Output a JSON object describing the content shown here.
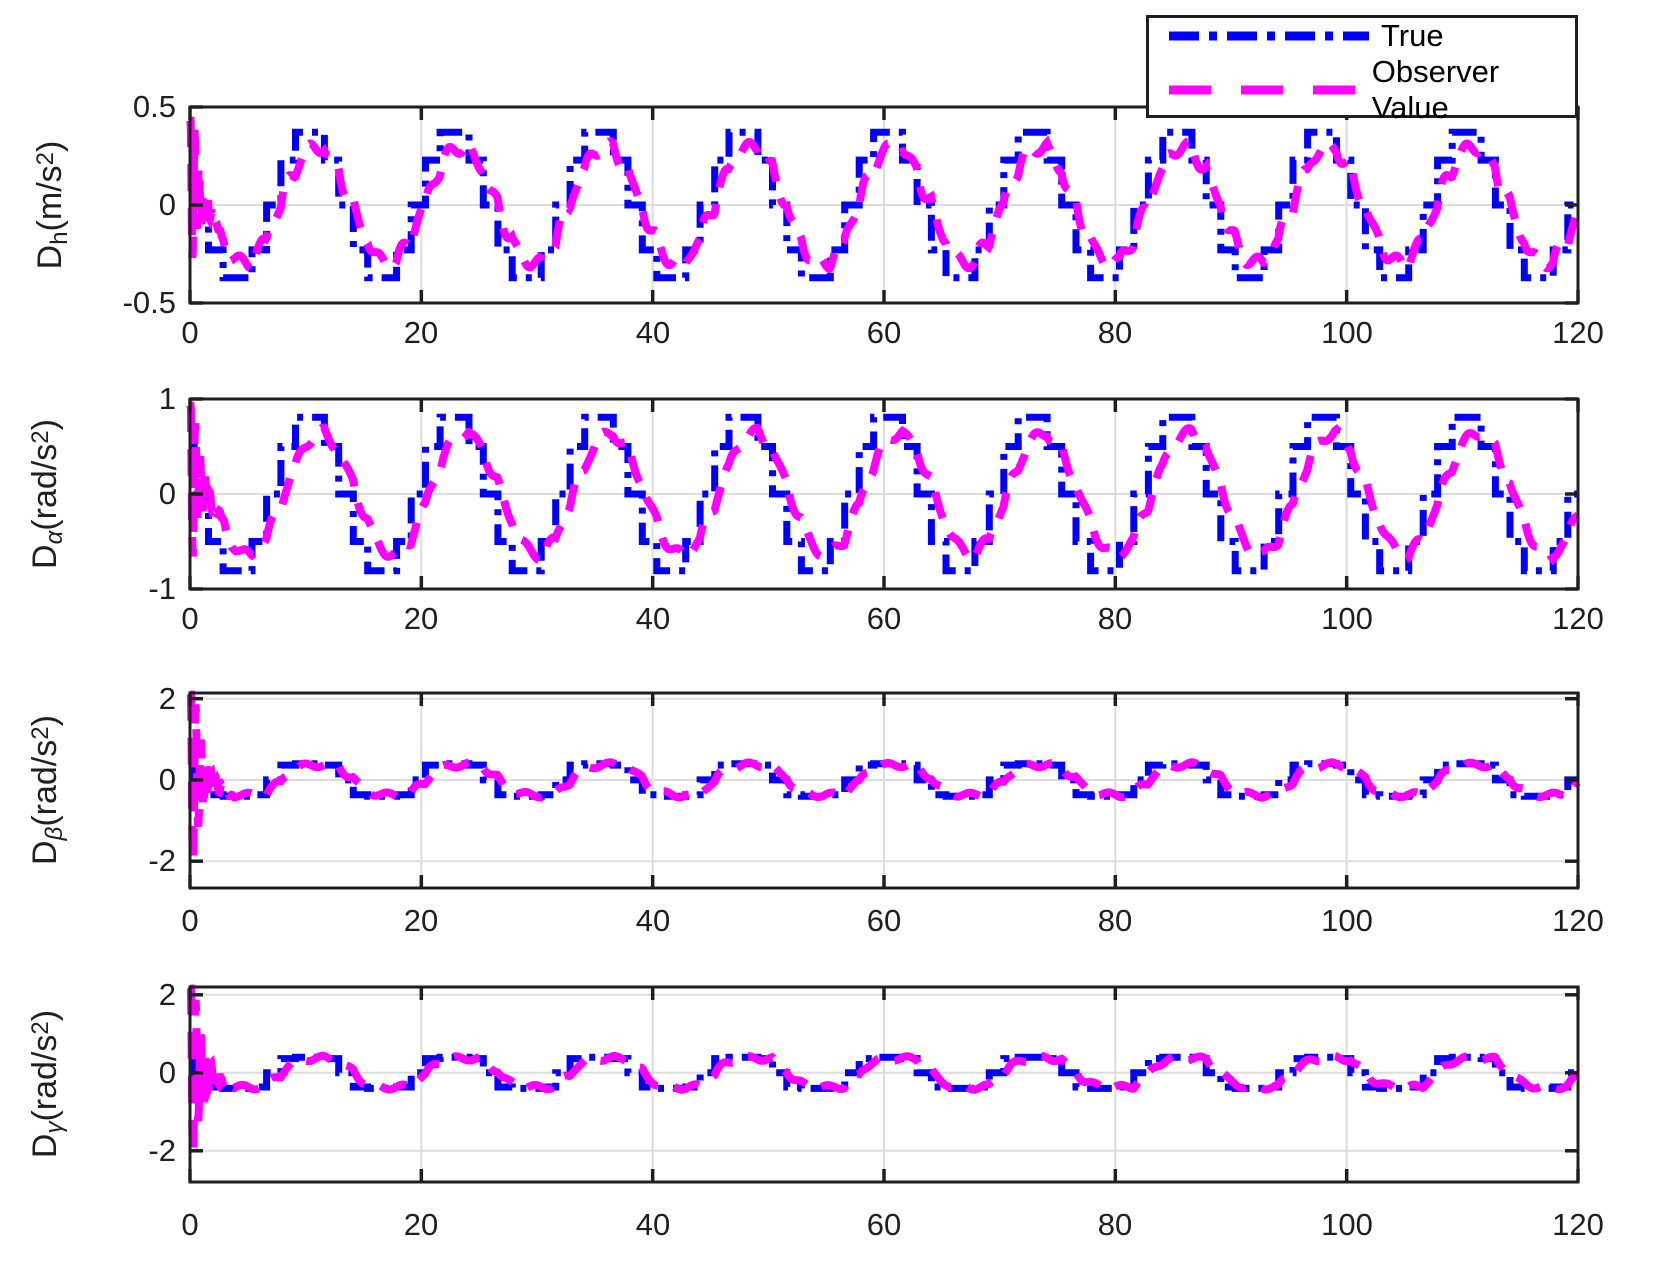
{
  "chart_data": {
    "type": "line",
    "title": "",
    "x_axis": {
      "label": "",
      "min": 0,
      "max": 120,
      "tick_vals": [
        0,
        20,
        40,
        60,
        80,
        100,
        120
      ],
      "tick_labels": [
        "0",
        "20",
        "40",
        "60",
        "80",
        "100",
        "120"
      ],
      "grid": true
    },
    "colors": {
      "true_line": "#0000FF",
      "observer_line": "#FF00FF",
      "grid": "#DCDCDC",
      "axis": "#1F1F1F",
      "text": "#1F1F1F",
      "background": "#FFFFFF"
    },
    "legend": {
      "position": "top-right",
      "entries": [
        {
          "label": "True",
          "color": "#0000FF",
          "linestyle": "dash-dot"
        },
        {
          "label": "Observer Value",
          "color": "#FF00FF",
          "linestyle": "dashed"
        }
      ]
    },
    "signal_period_s": 12.5,
    "subplots": [
      {
        "id": "dh",
        "ylabel": {
          "name": "D",
          "subscript": "h",
          "subscript_italic": false,
          "unit_open": "(m/s",
          "unit_exp": "2",
          "unit_close": ")"
        },
        "ylim": [
          -0.5,
          0.5
        ],
        "ytick_vals": [
          0.5,
          0,
          -0.5
        ],
        "ytick_labels": [
          "0.5",
          "0",
          "-0.5"
        ],
        "true_signal": {
          "shape": "zoh_sine",
          "amplitude": 0.39,
          "period": 12.5,
          "hold": 1.25,
          "phase": 0.35,
          "clip": null,
          "step_levels": [
            0.37,
            0.23,
            0,
            -0.23,
            -0.37
          ]
        },
        "observer_signal": {
          "model": "first_order_lag",
          "tau": 0.55,
          "gain": 0.8,
          "steady_amplitude": 0.3,
          "wiggle": {
            "amp": 0.03,
            "period": 2.0,
            "phase": 0.6
          },
          "transient": {
            "peak": 0.52,
            "decay": 1.6,
            "omega": 17,
            "phase": 1.0,
            "duration": 4
          },
          "clip": [
            -0.46,
            0.43
          ]
        }
      },
      {
        "id": "dalpha",
        "ylabel": {
          "name": "D",
          "subscript": "α",
          "subscript_italic": true,
          "unit_open": "(rad/s",
          "unit_exp": "2",
          "unit_close": ")"
        },
        "ylim": [
          -1,
          1
        ],
        "ytick_vals": [
          1,
          0,
          -1
        ],
        "ytick_labels": [
          "1",
          "0",
          "-1"
        ],
        "true_signal": {
          "shape": "zoh_sine",
          "amplitude": 0.85,
          "period": 12.5,
          "hold": 1.25,
          "phase": 0.35,
          "clip": null,
          "step_levels": [
            0.81,
            0.5,
            0,
            -0.5,
            -0.81
          ]
        },
        "observer_signal": {
          "model": "first_order_lag",
          "tau": 1.0,
          "gain": 0.85,
          "steady_amplitude": 0.62,
          "wiggle": {
            "amp": 0.05,
            "period": 2.2,
            "phase": 0.3
          },
          "transient": {
            "peak": 1.15,
            "decay": 1.5,
            "omega": 15,
            "phase": 1.0,
            "duration": 4
          },
          "clip": [
            -0.96,
            0.93
          ]
        }
      },
      {
        "id": "dbeta",
        "ylabel": {
          "name": "D",
          "subscript": "β",
          "subscript_italic": true,
          "unit_open": "(rad/s",
          "unit_exp": "2",
          "unit_close": ")"
        },
        "ylim": [
          -2.66,
          2.14
        ],
        "ytick_vals": [
          2,
          0,
          -2
        ],
        "ytick_labels": [
          "2",
          "0",
          "-2"
        ],
        "true_signal": {
          "shape": "zoh_sine",
          "amplitude": 0.62,
          "period": 12.5,
          "hold": 1.25,
          "phase": 0.35,
          "clip": 0.4,
          "step_levels": [
            0.4,
            0.37,
            0,
            -0.37,
            -0.4
          ]
        },
        "observer_signal": {
          "model": "first_order_lag",
          "tau": 0.75,
          "gain": 0.95,
          "steady_amplitude": 0.38,
          "wiggle": {
            "amp": 0.06,
            "period": 2.4,
            "phase": 0.9
          },
          "transient": {
            "peak": 3.2,
            "decay": 1.3,
            "omega": 14,
            "phase": 1.0,
            "duration": 4
          },
          "clip": [
            -2.6,
            2.1
          ]
        }
      },
      {
        "id": "dgamma",
        "ylabel": {
          "name": "D",
          "subscript": "γ",
          "subscript_italic": true,
          "unit_open": "(rad/s",
          "unit_exp": "2",
          "unit_close": ")"
        },
        "ylim": [
          -2.8,
          2.2
        ],
        "ytick_vals": [
          2,
          0,
          -2
        ],
        "ytick_labels": [
          "2",
          "0",
          "-2"
        ],
        "true_signal": {
          "shape": "zoh_sine",
          "amplitude": 0.62,
          "period": 12.5,
          "hold": 1.25,
          "phase": 0.35,
          "clip": 0.4,
          "step_levels": [
            0.4,
            0.37,
            0,
            -0.37,
            -0.4
          ]
        },
        "observer_signal": {
          "model": "first_order_lag",
          "tau": 0.75,
          "gain": 0.95,
          "steady_amplitude": 0.38,
          "wiggle": {
            "amp": 0.06,
            "period": 2.3,
            "phase": 1.7
          },
          "transient": {
            "peak": 3.3,
            "decay": 1.3,
            "omega": 14,
            "phase": 1.0,
            "duration": 4
          },
          "clip": [
            -2.72,
            2.16
          ]
        }
      }
    ]
  }
}
